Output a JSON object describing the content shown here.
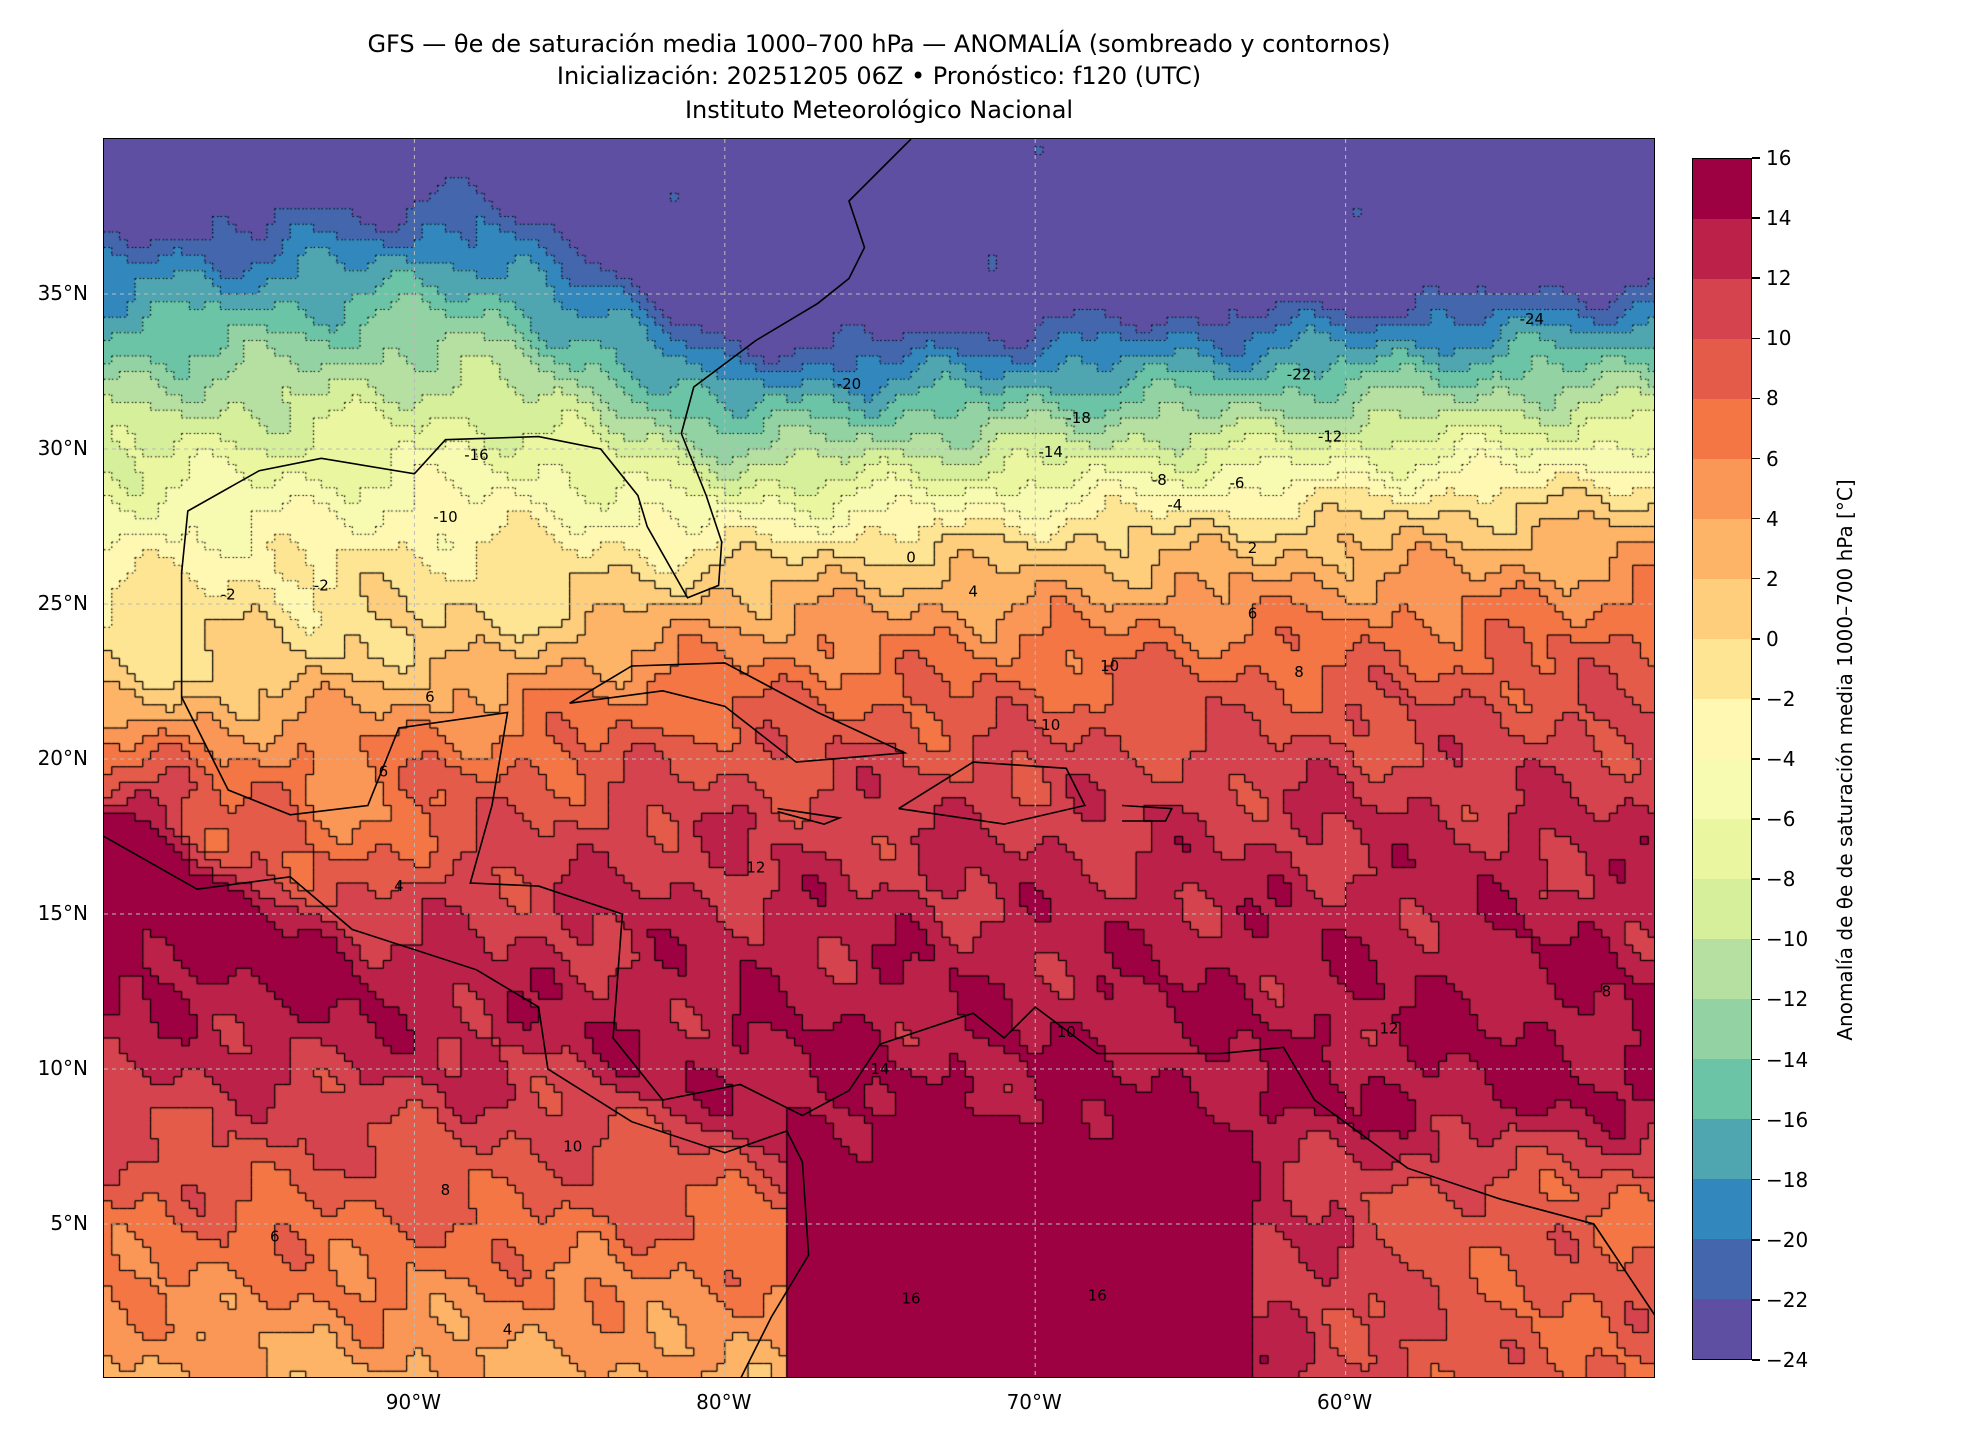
{
  "title": {
    "line1": "GFS — θe de saturación media 1000–700 hPa — ANOMALÍA (sombreado y contornos)",
    "line2": "Inicialización: 20251205 06Z   •   Pronóstico: f120 (UTC)",
    "line3": "Instituto Meteorológico Nacional"
  },
  "map": {
    "extent_lon": [
      -100,
      -50
    ],
    "extent_lat": [
      0,
      40
    ],
    "x_ticks": [
      {
        "lon": -90,
        "label": "90°W"
      },
      {
        "lon": -80,
        "label": "80°W"
      },
      {
        "lon": -70,
        "label": "70°W"
      },
      {
        "lon": -60,
        "label": "60°W"
      }
    ],
    "y_ticks": [
      {
        "lat": 35,
        "label": "35°N"
      },
      {
        "lat": 30,
        "label": "30°N"
      },
      {
        "lat": 25,
        "label": "25°N"
      },
      {
        "lat": 20,
        "label": "20°N"
      },
      {
        "lat": 15,
        "label": "15°N"
      },
      {
        "lat": 10,
        "label": "10°N"
      },
      {
        "lat": 5,
        "label": "5°N"
      }
    ],
    "contour_labels": [
      {
        "text": "-24",
        "lon": -54,
        "lat": 34.2
      },
      {
        "text": "-22",
        "lon": -61.5,
        "lat": 32.4
      },
      {
        "text": "-20",
        "lon": -76,
        "lat": 32.1
      },
      {
        "text": "-18",
        "lon": -68.6,
        "lat": 31
      },
      {
        "text": "-16",
        "lon": -88,
        "lat": 29.8
      },
      {
        "text": "-14",
        "lon": -69.5,
        "lat": 29.9
      },
      {
        "text": "-12",
        "lon": -60.5,
        "lat": 30.4
      },
      {
        "text": "-10",
        "lon": -89,
        "lat": 27.8
      },
      {
        "text": "-8",
        "lon": -66,
        "lat": 29
      },
      {
        "text": "-6",
        "lon": -63.5,
        "lat": 28.9
      },
      {
        "text": "-4",
        "lon": -65.5,
        "lat": 28.2
      },
      {
        "text": "-2",
        "lon": -93,
        "lat": 25.6
      },
      {
        "text": "-2",
        "lon": -96,
        "lat": 25.3
      },
      {
        "text": "0",
        "lon": -74,
        "lat": 26.5
      },
      {
        "text": "2",
        "lon": -63,
        "lat": 26.8
      },
      {
        "text": "4",
        "lon": -72,
        "lat": 25.4
      },
      {
        "text": "6",
        "lon": -63,
        "lat": 24.7
      },
      {
        "text": "6",
        "lon": -89.5,
        "lat": 22
      },
      {
        "text": "8",
        "lon": -61.5,
        "lat": 22.8
      },
      {
        "text": "10",
        "lon": -67.6,
        "lat": 23
      },
      {
        "text": "10",
        "lon": -69.5,
        "lat": 21.1
      },
      {
        "text": "12",
        "lon": -79,
        "lat": 16.5
      },
      {
        "text": "14",
        "lon": -75,
        "lat": 10
      },
      {
        "text": "12",
        "lon": -58.6,
        "lat": 11.3
      },
      {
        "text": "10",
        "lon": -69,
        "lat": 11.2
      },
      {
        "text": "8",
        "lon": -89,
        "lat": 6.1
      },
      {
        "text": "6",
        "lon": -94.5,
        "lat": 4.6
      },
      {
        "text": "4",
        "lon": -87,
        "lat": 1.6
      },
      {
        "text": "16",
        "lon": -68,
        "lat": 2.7
      },
      {
        "text": "16",
        "lon": -74,
        "lat": 2.6
      },
      {
        "text": "8",
        "lon": -51.6,
        "lat": 12.5
      },
      {
        "text": "10",
        "lon": -84.9,
        "lat": 7.5
      },
      {
        "text": "6",
        "lon": -91,
        "lat": 19.6
      },
      {
        "text": "4",
        "lon": -90.5,
        "lat": 15.9
      }
    ]
  },
  "colorbar": {
    "label": "Anomalía de θe de saturación media 1000–700 hPa [°C]",
    "levels": [
      -24,
      -22,
      -20,
      -18,
      -16,
      -14,
      -12,
      -10,
      -8,
      -6,
      -4,
      -2,
      0,
      2,
      4,
      6,
      8,
      10,
      12,
      14,
      16
    ],
    "tick_labels": [
      "−24",
      "−22",
      "−20",
      "−18",
      "−16",
      "−14",
      "−12",
      "−10",
      "−8",
      "−6",
      "−4",
      "−2",
      "0",
      "2",
      "4",
      "6",
      "8",
      "10",
      "12",
      "14",
      "16"
    ],
    "colors": [
      "#5e4fa2",
      "#4466ad",
      "#3288bd",
      "#4fa6b0",
      "#6bc4a6",
      "#93d3a3",
      "#b5e0a1",
      "#d5ef9b",
      "#eaf7a0",
      "#f7fbb2",
      "#fff8b3",
      "#fee593",
      "#fece7c",
      "#fdb466",
      "#fa9656",
      "#f47645",
      "#e45c49",
      "#d5434e",
      "#bc2149",
      "#9e0142"
    ]
  }
}
